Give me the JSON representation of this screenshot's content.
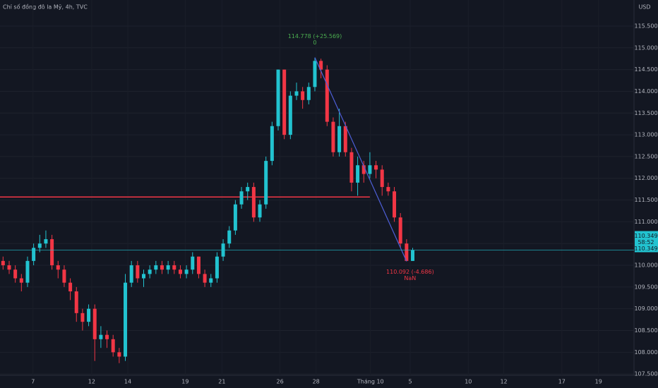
{
  "chart_data": {
    "type": "candlestick",
    "title": "Chỉ số đồng đô la Mỹ, 4h, TVC",
    "currency": "USD",
    "up_color": "#22c3d0",
    "down_color": "#f23645",
    "open": [
      110.1,
      110.0,
      109.9,
      109.7,
      109.6,
      110.1,
      110.4,
      110.5,
      110.6,
      110.0,
      109.9,
      109.6,
      109.4,
      108.9,
      108.7,
      109.0,
      108.3,
      108.4,
      108.3,
      108.0,
      107.9,
      109.6,
      110.0,
      109.7,
      109.8,
      109.9,
      110.0,
      109.9,
      110.0,
      109.9,
      109.8,
      109.9,
      110.2,
      109.8,
      109.6,
      109.7,
      110.2,
      110.5,
      110.8,
      111.4,
      111.7,
      111.8,
      111.1,
      111.4,
      112.4,
      113.2,
      114.5,
      113.0,
      113.9,
      114.0,
      113.8,
      114.1,
      114.7,
      114.5,
      113.3,
      112.6,
      113.2,
      112.6,
      111.9,
      112.3,
      112.1,
      112.3,
      112.2,
      111.8,
      111.7,
      111.1,
      110.5,
      110.1
    ],
    "high": [
      110.2,
      110.1,
      110.0,
      109.8,
      110.2,
      110.5,
      110.7,
      110.8,
      110.7,
      110.1,
      110.0,
      109.7,
      109.5,
      109.0,
      109.1,
      109.1,
      108.6,
      108.5,
      108.4,
      108.1,
      109.8,
      110.1,
      110.1,
      109.9,
      110.0,
      110.1,
      110.1,
      110.1,
      110.1,
      110.0,
      110.0,
      110.3,
      110.2,
      109.9,
      109.8,
      110.3,
      110.6,
      110.9,
      111.5,
      111.8,
      111.9,
      111.9,
      111.5,
      112.5,
      113.3,
      114.5,
      114.5,
      114.0,
      114.2,
      114.1,
      114.2,
      114.778,
      114.75,
      114.6,
      113.4,
      113.6,
      113.3,
      112.7,
      112.5,
      112.4,
      112.6,
      112.4,
      112.3,
      111.9,
      111.8,
      111.2,
      110.6,
      110.4
    ],
    "low": [
      109.9,
      109.8,
      109.6,
      109.4,
      109.5,
      110.0,
      110.3,
      110.4,
      109.9,
      109.7,
      109.5,
      109.2,
      108.7,
      108.5,
      108.6,
      107.8,
      108.1,
      108.1,
      107.9,
      107.75,
      107.8,
      109.5,
      109.6,
      109.5,
      109.7,
      109.8,
      109.8,
      109.8,
      109.8,
      109.7,
      109.7,
      109.8,
      109.7,
      109.5,
      109.5,
      109.6,
      110.1,
      110.4,
      110.7,
      111.3,
      111.5,
      111.0,
      111.0,
      111.3,
      112.3,
      113.1,
      112.9,
      112.9,
      113.8,
      113.6,
      113.7,
      114.0,
      114.3,
      113.2,
      112.5,
      112.5,
      112.5,
      111.7,
      111.6,
      111.9,
      112.0,
      112.0,
      111.6,
      111.6,
      111.0,
      110.4,
      110.092,
      110.1
    ],
    "close": [
      110.0,
      109.9,
      109.7,
      109.6,
      110.1,
      110.4,
      110.5,
      110.6,
      110.0,
      109.9,
      109.6,
      109.4,
      108.9,
      108.7,
      109.0,
      108.3,
      108.4,
      108.3,
      108.0,
      107.9,
      109.6,
      110.0,
      109.7,
      109.8,
      109.9,
      110.0,
      109.9,
      110.0,
      109.9,
      109.8,
      109.9,
      110.2,
      109.8,
      109.6,
      109.7,
      110.2,
      110.5,
      110.8,
      111.4,
      111.7,
      111.8,
      111.1,
      111.4,
      112.4,
      113.2,
      114.5,
      113.0,
      113.9,
      114.0,
      113.8,
      114.1,
      114.7,
      114.5,
      113.3,
      112.6,
      113.2,
      112.6,
      111.9,
      112.3,
      112.1,
      112.3,
      112.2,
      111.8,
      111.7,
      111.1,
      110.5,
      110.1,
      110.349
    ],
    "xlim": [
      -0.5,
      103.2
    ],
    "xticks": [
      {
        "value": 4.9,
        "label": "7"
      },
      {
        "value": 14.5,
        "label": "12"
      },
      {
        "value": 20.4,
        "label": "14"
      },
      {
        "value": 29.8,
        "label": "19"
      },
      {
        "value": 35.8,
        "label": "21"
      },
      {
        "value": 45.3,
        "label": "26"
      },
      {
        "value": 51.2,
        "label": "28"
      },
      {
        "value": 60.1,
        "label": "Tháng 10"
      },
      {
        "value": 66.6,
        "label": "5"
      },
      {
        "value": 76.1,
        "label": "10"
      },
      {
        "value": 81.9,
        "label": "12"
      },
      {
        "value": 91.4,
        "label": "17"
      },
      {
        "value": 97.4,
        "label": "19"
      }
    ],
    "ylim": [
      107.47,
      116.1
    ],
    "yticks": [
      {
        "value": 107.5,
        "label": "107.500"
      },
      {
        "value": 108,
        "label": "108.000"
      },
      {
        "value": 108.5,
        "label": "108.500"
      },
      {
        "value": 109,
        "label": "109.000"
      },
      {
        "value": 109.5,
        "label": "109.500"
      },
      {
        "value": 110,
        "label": "110.000"
      },
      {
        "value": 110.5,
        "label": "110.500"
      },
      {
        "value": 111,
        "label": "111.000"
      },
      {
        "value": 111.5,
        "label": "111.500"
      },
      {
        "value": 112,
        "label": "112.000"
      },
      {
        "value": 112.5,
        "label": "112.500"
      },
      {
        "value": 113,
        "label": "113.000"
      },
      {
        "value": 113.5,
        "label": "113.500"
      },
      {
        "value": 114,
        "label": "114.000"
      },
      {
        "value": 114.5,
        "label": "114.500"
      },
      {
        "value": 115,
        "label": "115.000"
      },
      {
        "value": 115.5,
        "label": "115.500"
      }
    ],
    "grid": true,
    "level": 111.57,
    "level_color": "#f23645",
    "trend_color": "#4e5fd8",
    "last_price_label": "110.349",
    "countdown": "58:52",
    "high_annotation": [
      "114.778 (+25.569)",
      "0"
    ],
    "low_annotation": [
      "110.092 (-4.686)",
      "NaN"
    ]
  }
}
